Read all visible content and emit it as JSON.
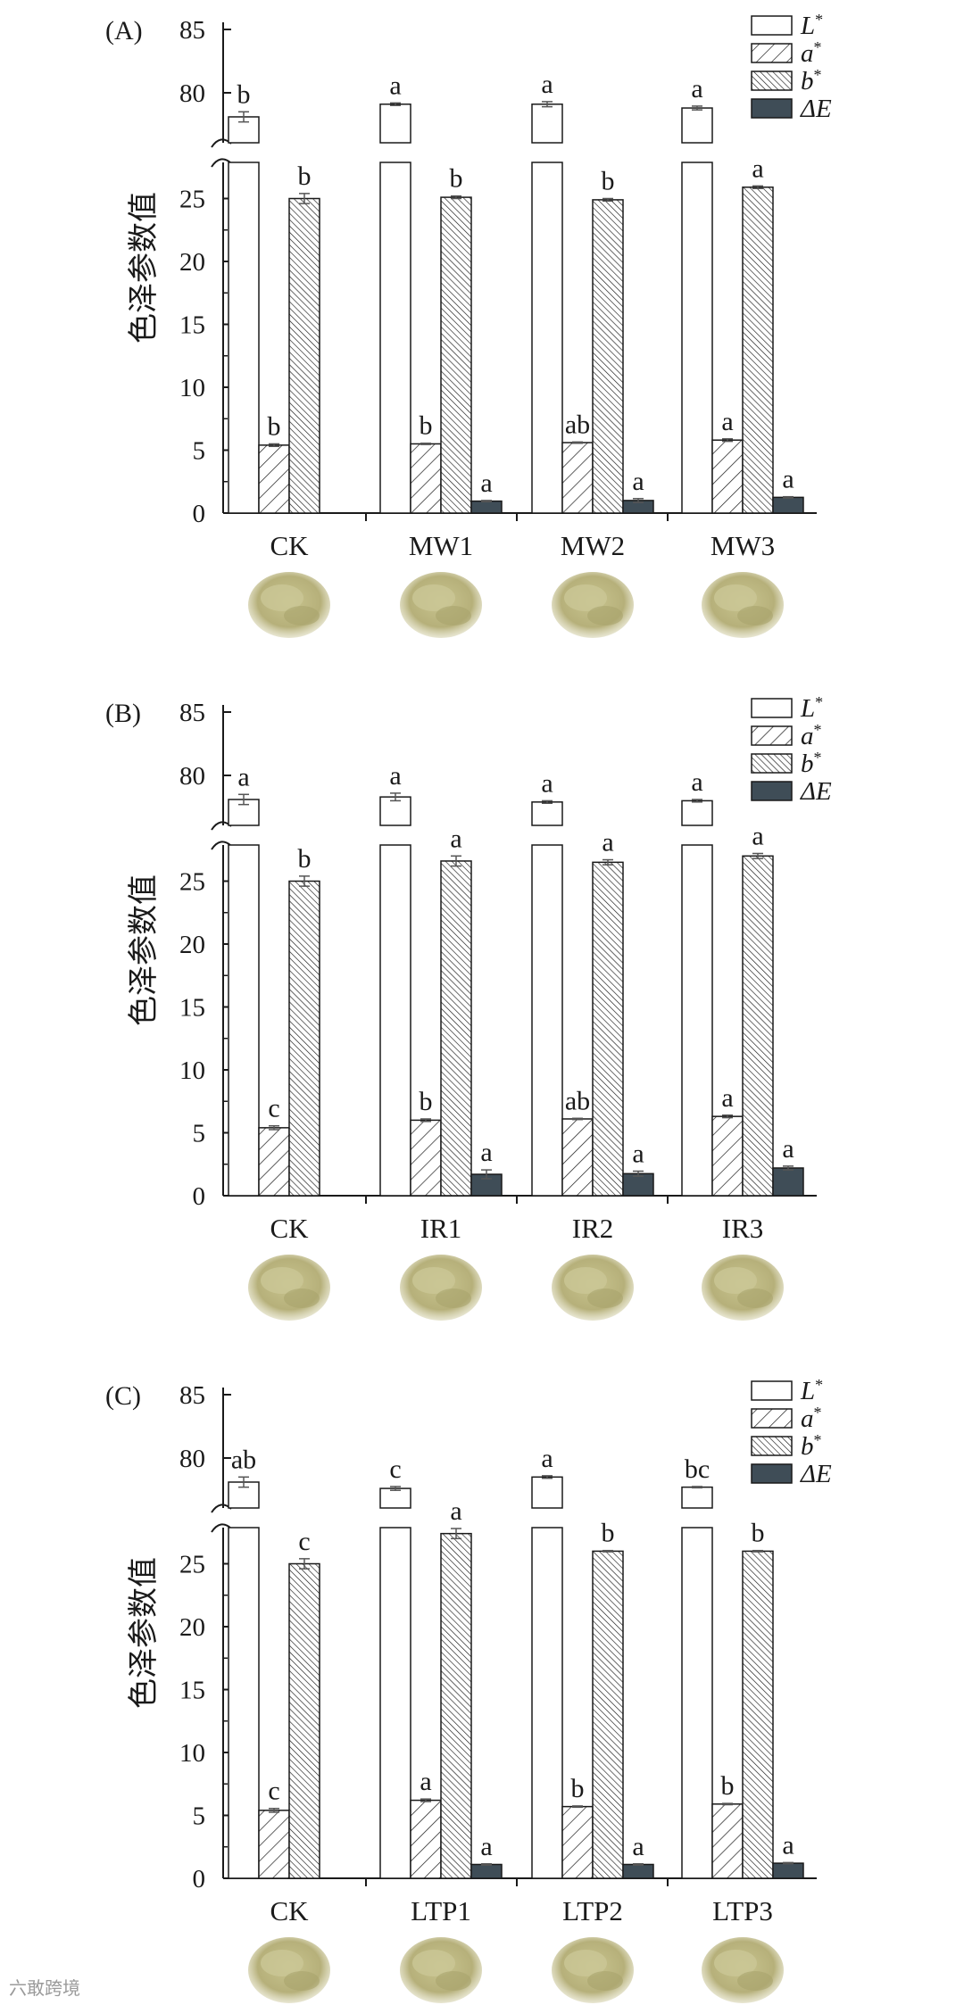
{
  "colors": {
    "L": "#ffffff",
    "a": "#ffffff",
    "b": "#ffffff",
    "dE": "#3f4d57",
    "stroke": "#1a1a1a",
    "powder": "#b9b47e"
  },
  "legend": [
    {
      "key": "L",
      "base": "L",
      "sup": "*",
      "pattern": "none"
    },
    {
      "key": "a",
      "base": "a",
      "sup": "*",
      "pattern": "sparse"
    },
    {
      "key": "b",
      "base": "b",
      "sup": "*",
      "pattern": "dense"
    },
    {
      "key": "dE",
      "base": "ΔE",
      "sup": "",
      "pattern": "solid"
    }
  ],
  "chart_data": [
    {
      "type": "bar",
      "panel": "(A)",
      "ylabel": "色泽参数值",
      "upper_axis_ticks": [
        80,
        85
      ],
      "lower_axis_ticks": [
        0,
        5,
        10,
        15,
        20,
        25
      ],
      "categories": [
        "CK",
        "MW1",
        "MW2",
        "MW3"
      ],
      "series": [
        {
          "name": "L*",
          "values": [
            78.1,
            79.1,
            79.1,
            78.8
          ],
          "errors": [
            0.4,
            0.1,
            0.2,
            0.15
          ],
          "letters": [
            "b",
            "a",
            "a",
            "a"
          ]
        },
        {
          "name": "a*",
          "values": [
            5.4,
            5.5,
            5.6,
            5.8
          ],
          "errors": [
            0.1,
            0.05,
            0.05,
            0.1
          ],
          "letters": [
            "b",
            "b",
            "ab",
            "a"
          ]
        },
        {
          "name": "b*",
          "values": [
            25.0,
            25.1,
            24.9,
            25.9
          ],
          "errors": [
            0.4,
            0.1,
            0.1,
            0.1
          ],
          "letters": [
            "b",
            "b",
            "b",
            "a"
          ]
        },
        {
          "name": "ΔE",
          "values": [
            0,
            0.95,
            1.0,
            1.25
          ],
          "errors": [
            0,
            0.05,
            0.15,
            0.05
          ],
          "letters": [
            "",
            "a",
            "a",
            "a"
          ]
        }
      ]
    },
    {
      "type": "bar",
      "panel": "(B)",
      "ylabel": "色泽参数值",
      "upper_axis_ticks": [
        80,
        85
      ],
      "lower_axis_ticks": [
        0,
        5,
        10,
        15,
        20,
        25
      ],
      "categories": [
        "CK",
        "IR1",
        "IR2",
        "IR3"
      ],
      "series": [
        {
          "name": "L*",
          "values": [
            78.1,
            78.3,
            77.9,
            78.0
          ],
          "errors": [
            0.4,
            0.3,
            0.1,
            0.1
          ],
          "letters": [
            "a",
            "a",
            "a",
            "a"
          ]
        },
        {
          "name": "a*",
          "values": [
            5.4,
            6.0,
            6.1,
            6.3
          ],
          "errors": [
            0.15,
            0.1,
            0.05,
            0.1
          ],
          "letters": [
            "c",
            "b",
            "ab",
            "a"
          ]
        },
        {
          "name": "b*",
          "values": [
            25.0,
            26.6,
            26.5,
            27.0
          ],
          "errors": [
            0.4,
            0.4,
            0.2,
            0.2
          ],
          "letters": [
            "b",
            "a",
            "a",
            "a"
          ]
        },
        {
          "name": "ΔE",
          "values": [
            0,
            1.7,
            1.75,
            2.2
          ],
          "errors": [
            0,
            0.35,
            0.2,
            0.15
          ],
          "letters": [
            "",
            "a",
            "a",
            "a"
          ]
        }
      ]
    },
    {
      "type": "bar",
      "panel": "(C)",
      "ylabel": "色泽参数值",
      "upper_axis_ticks": [
        80,
        85
      ],
      "lower_axis_ticks": [
        0,
        5,
        10,
        15,
        20,
        25
      ],
      "categories": [
        "CK",
        "LTP1",
        "LTP2",
        "LTP3"
      ],
      "series": [
        {
          "name": "L*",
          "values": [
            78.1,
            77.6,
            78.5,
            77.7
          ],
          "errors": [
            0.4,
            0.15,
            0.1,
            0.05
          ],
          "letters": [
            "ab",
            "c",
            "a",
            "bc"
          ]
        },
        {
          "name": "a*",
          "values": [
            5.4,
            6.2,
            5.7,
            5.9
          ],
          "errors": [
            0.15,
            0.1,
            0.05,
            0.05
          ],
          "letters": [
            "c",
            "a",
            "b",
            "b"
          ]
        },
        {
          "name": "b*",
          "values": [
            25.0,
            27.4,
            26.0,
            26.0
          ],
          "errors": [
            0.4,
            0.4,
            0.05,
            0.05
          ],
          "letters": [
            "c",
            "a",
            "b",
            "b"
          ]
        },
        {
          "name": "ΔE",
          "values": [
            0,
            1.1,
            1.1,
            1.2
          ],
          "errors": [
            0,
            0.05,
            0.05,
            0.05
          ],
          "letters": [
            "",
            "a",
            "a",
            "a"
          ]
        }
      ]
    }
  ],
  "watermark": "六敢跨境"
}
